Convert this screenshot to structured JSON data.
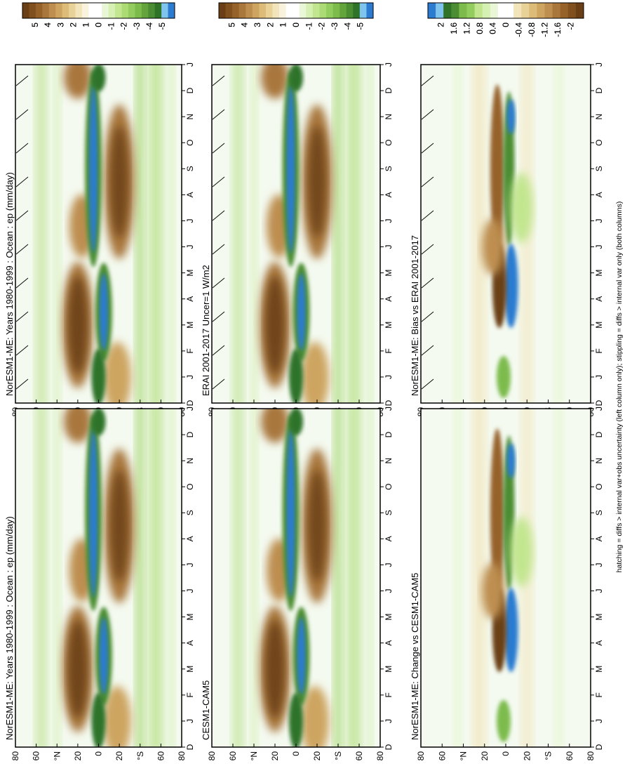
{
  "panels": [
    {
      "id": "p1",
      "title": "NorESM1-ME: Years 1980-1999 : Ocean : ep (mm/day)",
      "cbar": "main",
      "hatch": "both"
    },
    {
      "id": "p2",
      "title": "NorESM1-ME: Years 1980-1999 : Ocean : ep (mm/day)",
      "cbar": "main",
      "hatch": "none"
    },
    {
      "id": "p3",
      "title": "ERAI 2001-2017 Uncer=1 W/m2",
      "cbar": "main",
      "hatch": "both"
    },
    {
      "id": "p4",
      "title": "CESM1-CAM5",
      "cbar": "main",
      "hatch": "none"
    },
    {
      "id": "p5",
      "title": "NorESM1-ME: Bias vs ERAI 2001-2017",
      "cbar": "diff",
      "hatch": "both"
    },
    {
      "id": "p6",
      "title": "NorESM1-ME: Change vs CESM1-CAM5",
      "cbar": "diffrev",
      "hatch": "none"
    }
  ],
  "months": [
    "D",
    "J",
    "F",
    "M",
    "A",
    "M",
    "J",
    "J",
    "A",
    "S",
    "O",
    "N",
    "D",
    "J"
  ],
  "lat_ticks": [
    "80",
    "60",
    "°N",
    "20",
    "0",
    "20",
    "°S",
    "60",
    "80"
  ],
  "colorbars": {
    "main": {
      "labels": [
        "5",
        "4",
        "3",
        "2",
        "1",
        "0",
        "-1",
        "-2",
        "-3",
        "-4",
        "-5"
      ],
      "colors": [
        "#6b3f15",
        "#80501f",
        "#96622a",
        "#a9773c",
        "#bd8e4f",
        "#cda460",
        "#ddbb78",
        "#e8d297",
        "#f2e5bc",
        "#f9f3de",
        "#ffffff",
        "#ffffff",
        "#eaf7d6",
        "#d6efb2",
        "#c2e68f",
        "#acdb75",
        "#94cd5f",
        "#7dbb4d",
        "#64a43d",
        "#4b8d33",
        "#2f7329",
        "#7fc4ec",
        "#2b7bd0"
      ]
    },
    "diff": {
      "labels": [
        "2",
        "1.6",
        "1.2",
        "0.8",
        "0.4",
        "0",
        "-0.4",
        "-0.8",
        "-1.2",
        "-1.6",
        "-2"
      ],
      "colors": [
        "#6b3f15",
        "#80501f",
        "#96622a",
        "#a9773c",
        "#bd8e4f",
        "#cda460",
        "#ddbb78",
        "#e8d297",
        "#f2e5bc",
        "#ffffff",
        "#ffffff",
        "#eaf7d6",
        "#d6efb2",
        "#c2e68f",
        "#94cd5f",
        "#7dbb4d",
        "#4b8d33",
        "#2f7329",
        "#7fc4ec",
        "#2b7bd0"
      ]
    },
    "diffrev": {
      "labels": [
        "2",
        "1.6",
        "1.2",
        "0.8",
        "0.4",
        "0",
        "-0.4",
        "-0.8",
        "-1.2",
        "-1.6",
        "-2"
      ],
      "colors": [
        "#2b7bd0",
        "#7fc4ec",
        "#2f7329",
        "#4b8d33",
        "#7dbb4d",
        "#94cd5f",
        "#c2e68f",
        "#d6efb2",
        "#eaf7d6",
        "#ffffff",
        "#ffffff",
        "#f2e5bc",
        "#e8d297",
        "#ddbb78",
        "#cda460",
        "#bd8e4f",
        "#a9773c",
        "#96622a",
        "#80501f",
        "#6b3f15"
      ]
    }
  },
  "footnote": "hatching = diffs > internal var+obs uncertainty (left column only); stippling = diffs > internal var only (both columns)",
  "chart_data": [
    {
      "type": "heatmap",
      "title": "NorESM1-ME: Years 1980-1999 : Ocean : ep (mm/day)",
      "x": "month (D–J)",
      "y": "latitude (80N–80S)"
    },
    {
      "type": "heatmap",
      "title": "NorESM1-ME: Years 1980-1999 : Ocean : ep (mm/day)",
      "x": "month (D–J)",
      "y": "latitude (80N–80S)"
    },
    {
      "type": "heatmap",
      "title": "ERAI 2001-2017 Uncer=1 W/m2",
      "x": "month (D–J)",
      "y": "latitude (80N–80S)"
    },
    {
      "type": "heatmap",
      "title": "CESM1-CAM5",
      "x": "month (D–J)",
      "y": "latitude (80N–80S)"
    },
    {
      "type": "heatmap",
      "title": "NorESM1-ME: Bias vs ERAI 2001-2017",
      "x": "month (D–J)",
      "y": "latitude (80N–80S)"
    },
    {
      "type": "heatmap",
      "title": "NorESM1-ME: Change vs CESM1-CAM5",
      "x": "month (D–J)",
      "y": "latitude (80N–80S)"
    }
  ]
}
